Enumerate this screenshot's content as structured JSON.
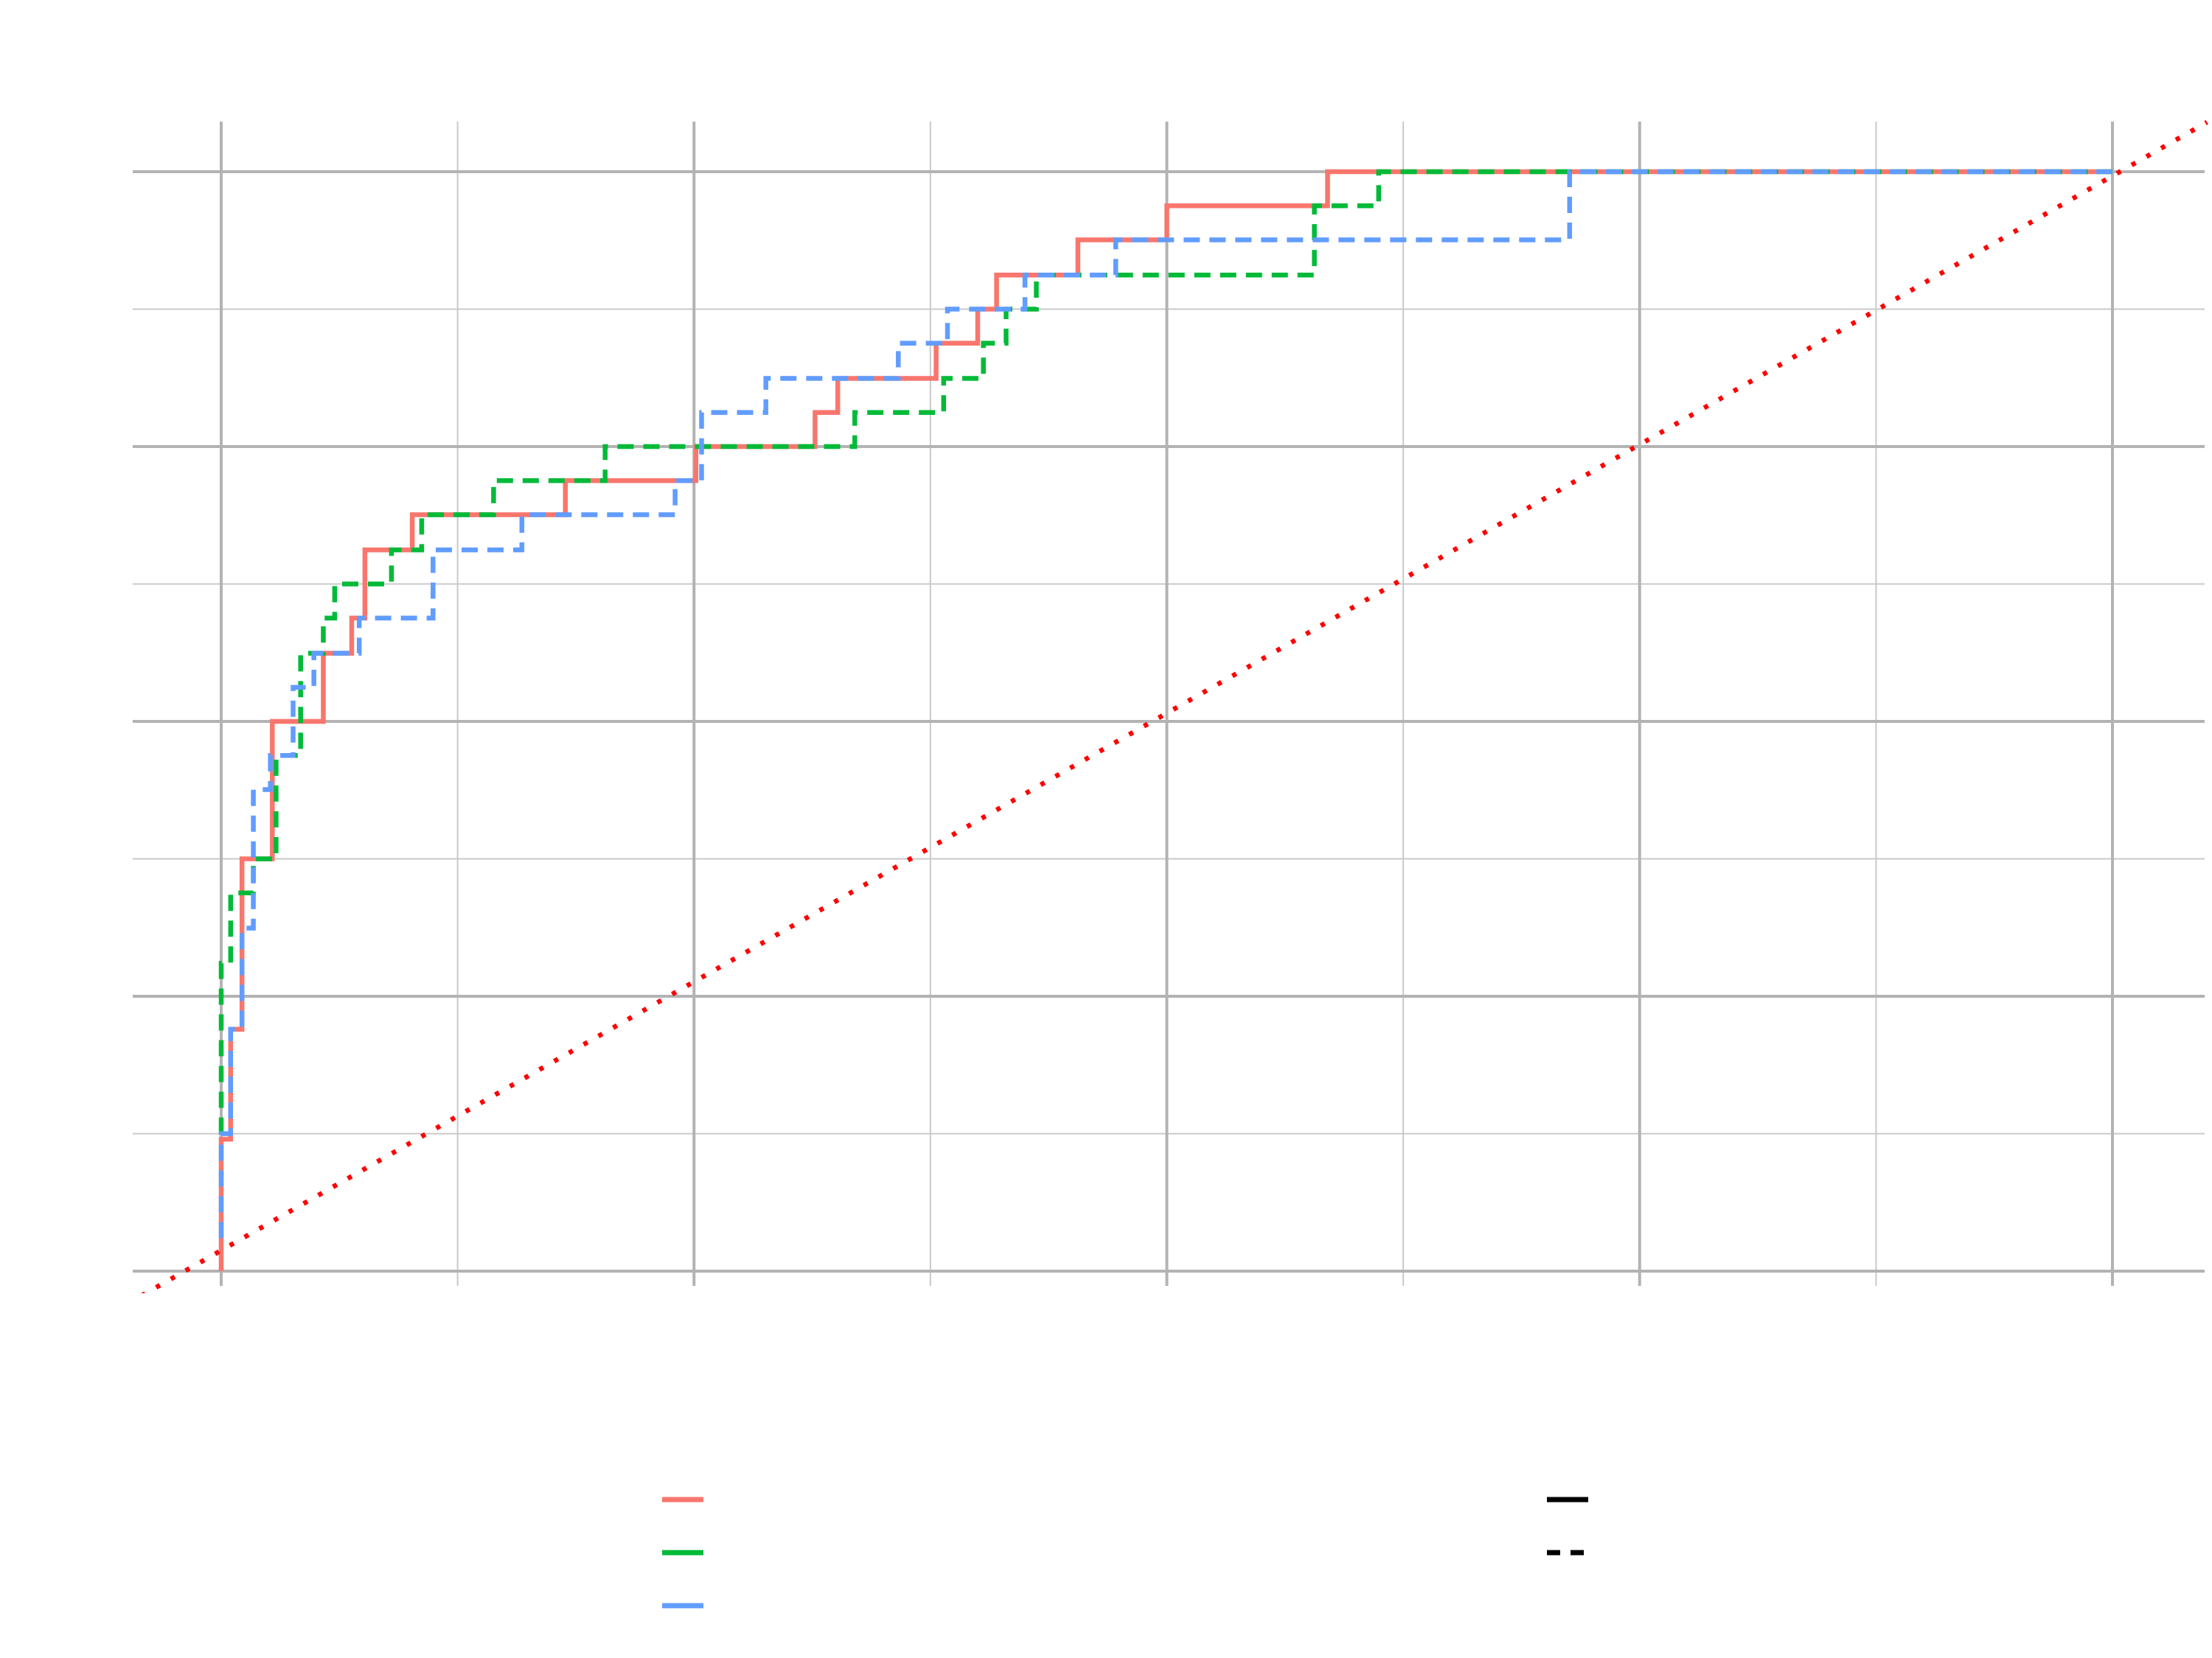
{
  "chart_data": {
    "type": "line",
    "subtype": "roc-step",
    "title": "",
    "xlabel": "",
    "ylabel": "",
    "xlim": [
      -0.05,
      1.05
    ],
    "ylim": [
      -0.02,
      1.045
    ],
    "x_major_ticks": [
      0,
      0.25,
      0.5,
      0.75,
      1.0
    ],
    "x_minor_ticks": [
      0.125,
      0.375,
      0.625,
      0.875
    ],
    "y_major_ticks": [
      0,
      0.25,
      0.5,
      0.75,
      1.0
    ],
    "y_minor_ticks": [
      0.125,
      0.375,
      0.625,
      0.875
    ],
    "tick_labels_visible": false,
    "grid": true,
    "legend_position": "bottom",
    "series": [
      {
        "color": "#F8766D",
        "linetype": "solid",
        "points": [
          [
            0,
            0
          ],
          [
            0,
            0.12
          ],
          [
            0.005,
            0.12
          ],
          [
            0.005,
            0.22
          ],
          [
            0.011,
            0.22
          ],
          [
            0.011,
            0.375
          ],
          [
            0.027,
            0.375
          ],
          [
            0.027,
            0.5
          ],
          [
            0.054,
            0.5
          ],
          [
            0.054,
            0.562
          ],
          [
            0.069,
            0.562
          ],
          [
            0.069,
            0.594
          ],
          [
            0.076,
            0.594
          ],
          [
            0.076,
            0.656
          ],
          [
            0.101,
            0.656
          ],
          [
            0.101,
            0.688
          ],
          [
            0.182,
            0.688
          ],
          [
            0.182,
            0.719
          ],
          [
            0.251,
            0.719
          ],
          [
            0.251,
            0.75
          ],
          [
            0.314,
            0.75
          ],
          [
            0.314,
            0.781
          ],
          [
            0.326,
            0.781
          ],
          [
            0.326,
            0.812
          ],
          [
            0.378,
            0.812
          ],
          [
            0.378,
            0.844
          ],
          [
            0.4,
            0.844
          ],
          [
            0.4,
            0.875
          ],
          [
            0.41,
            0.875
          ],
          [
            0.41,
            0.906
          ],
          [
            0.453,
            0.906
          ],
          [
            0.453,
            0.938
          ],
          [
            0.5,
            0.938
          ],
          [
            0.5,
            0.969
          ],
          [
            0.585,
            0.969
          ],
          [
            0.585,
            1.0
          ],
          [
            1.0,
            1.0
          ]
        ]
      },
      {
        "color": "#00BA38",
        "linetype": "dashed",
        "points": [
          [
            0,
            0.125
          ],
          [
            0,
            0.28
          ],
          [
            0.005,
            0.28
          ],
          [
            0.005,
            0.344
          ],
          [
            0.017,
            0.344
          ],
          [
            0.017,
            0.375
          ],
          [
            0.029,
            0.375
          ],
          [
            0.029,
            0.469
          ],
          [
            0.042,
            0.469
          ],
          [
            0.042,
            0.562
          ],
          [
            0.054,
            0.562
          ],
          [
            0.054,
            0.594
          ],
          [
            0.06,
            0.594
          ],
          [
            0.06,
            0.625
          ],
          [
            0.09,
            0.625
          ],
          [
            0.09,
            0.656
          ],
          [
            0.106,
            0.656
          ],
          [
            0.106,
            0.688
          ],
          [
            0.144,
            0.688
          ],
          [
            0.144,
            0.719
          ],
          [
            0.203,
            0.719
          ],
          [
            0.203,
            0.75
          ],
          [
            0.335,
            0.75
          ],
          [
            0.335,
            0.781
          ],
          [
            0.382,
            0.781
          ],
          [
            0.382,
            0.812
          ],
          [
            0.403,
            0.812
          ],
          [
            0.403,
            0.844
          ],
          [
            0.415,
            0.844
          ],
          [
            0.415,
            0.875
          ],
          [
            0.431,
            0.875
          ],
          [
            0.431,
            0.906
          ],
          [
            0.578,
            0.906
          ],
          [
            0.578,
            0.969
          ],
          [
            0.612,
            0.969
          ],
          [
            0.612,
            1.0
          ],
          [
            1.0,
            1.0
          ]
        ]
      },
      {
        "color": "#619CFF",
        "linetype": "dashed",
        "points": [
          [
            0,
            0.03
          ],
          [
            0,
            0.125
          ],
          [
            0.005,
            0.125
          ],
          [
            0.005,
            0.22
          ],
          [
            0.011,
            0.22
          ],
          [
            0.011,
            0.312
          ],
          [
            0.017,
            0.312
          ],
          [
            0.017,
            0.438
          ],
          [
            0.026,
            0.438
          ],
          [
            0.026,
            0.469
          ],
          [
            0.038,
            0.469
          ],
          [
            0.038,
            0.531
          ],
          [
            0.049,
            0.531
          ],
          [
            0.049,
            0.562
          ],
          [
            0.073,
            0.562
          ],
          [
            0.073,
            0.594
          ],
          [
            0.112,
            0.594
          ],
          [
            0.112,
            0.656
          ],
          [
            0.159,
            0.656
          ],
          [
            0.159,
            0.688
          ],
          [
            0.24,
            0.688
          ],
          [
            0.24,
            0.719
          ],
          [
            0.254,
            0.719
          ],
          [
            0.254,
            0.781
          ],
          [
            0.288,
            0.781
          ],
          [
            0.288,
            0.812
          ],
          [
            0.358,
            0.812
          ],
          [
            0.358,
            0.844
          ],
          [
            0.384,
            0.844
          ],
          [
            0.384,
            0.875
          ],
          [
            0.425,
            0.875
          ],
          [
            0.425,
            0.906
          ],
          [
            0.473,
            0.906
          ],
          [
            0.473,
            0.938
          ],
          [
            0.713,
            0.938
          ],
          [
            0.713,
            1.0
          ],
          [
            1.0,
            1.0
          ]
        ]
      }
    ],
    "reference_line": {
      "color": "#FF0000",
      "linetype": "dotted",
      "from": [
        -0.05,
        -0.03
      ],
      "to": [
        1.05,
        1.045
      ]
    },
    "legend_groups": [
      {
        "items": [
          {
            "color": "#F8766D",
            "linetype": "solid"
          },
          {
            "color": "#00BA38",
            "linetype": "solid"
          },
          {
            "color": "#619CFF",
            "linetype": "solid"
          }
        ]
      },
      {
        "items": [
          {
            "color": "#000000",
            "linetype": "solid"
          },
          {
            "color": "#000000",
            "linetype": "dashed"
          }
        ]
      }
    ]
  }
}
